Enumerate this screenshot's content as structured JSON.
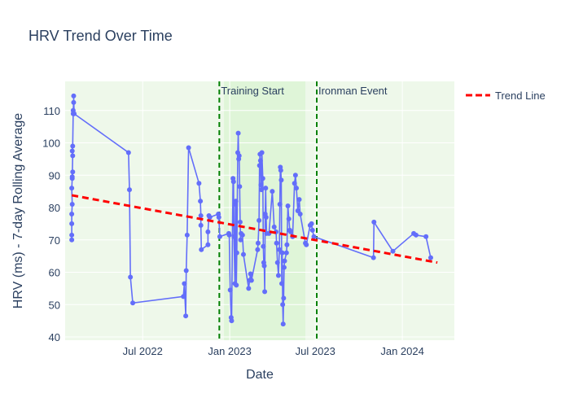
{
  "chart_data": {
    "type": "line",
    "title": "HRV Trend Over Time",
    "xlabel": "Date",
    "ylabel": "HRV (ms) - 7-day Rolling Average",
    "xlim": [
      "2022-01-18",
      "2024-04-20"
    ],
    "ylim": [
      39,
      119
    ],
    "x_ticks": [
      {
        "date": "2022-07-01",
        "label": "Jul 2022"
      },
      {
        "date": "2023-01-01",
        "label": "Jan 2023"
      },
      {
        "date": "2023-07-01",
        "label": "Jul 2023"
      },
      {
        "date": "2024-01-01",
        "label": "Jan 2024"
      }
    ],
    "y_ticks": [
      40,
      50,
      60,
      70,
      80,
      90,
      100,
      110
    ],
    "grid": true,
    "legend": {
      "position": "top-right",
      "entries": [
        {
          "name": "Trend Line",
          "color": "#ff0000",
          "style": "dashed"
        }
      ]
    },
    "colors": {
      "series": "#636efa",
      "trend": "#ff0000",
      "markers": "#008000",
      "background": "#eef8ea",
      "highlight": "#dff5d8",
      "axis_text": "#2a3f5f"
    },
    "regions": [
      {
        "start": "2022-01-18",
        "end": "2024-04-20",
        "label": ""
      },
      {
        "start": "2022-12-20",
        "end": "2023-06-10",
        "label": ""
      }
    ],
    "vlines": [
      {
        "date": "2022-12-10",
        "label": "Training Start"
      },
      {
        "date": "2023-07-04",
        "label": "Ironman Event"
      }
    ],
    "trend": {
      "start": {
        "x": "2022-02-01",
        "y": 83.8
      },
      "end": {
        "x": "2024-03-15",
        "y": 63.0
      }
    },
    "series": [
      {
        "name": "",
        "points": [
          [
            "2022-02-01",
            70
          ],
          [
            "2022-02-01",
            71.5
          ],
          [
            "2022-02-01",
            75
          ],
          [
            "2022-02-01",
            78
          ],
          [
            "2022-02-02",
            81
          ],
          [
            "2022-02-01",
            86
          ],
          [
            "2022-02-02",
            89
          ],
          [
            "2022-02-03",
            91
          ],
          [
            "2022-02-02",
            89.5
          ],
          [
            "2022-02-03",
            96
          ],
          [
            "2022-02-02",
            97.5
          ],
          [
            "2022-02-03",
            99
          ],
          [
            "2022-02-04",
            109
          ],
          [
            "2022-02-04",
            110
          ],
          [
            "2022-02-05",
            112.5
          ],
          [
            "2022-02-05",
            114.5
          ],
          [
            "2022-02-06",
            109
          ],
          [
            "2022-06-01",
            97
          ],
          [
            "2022-06-03",
            85.5
          ],
          [
            "2022-06-05",
            58.5
          ],
          [
            "2022-06-10",
            50.5
          ],
          [
            "2022-09-25",
            52.5
          ],
          [
            "2022-09-27",
            56.5
          ],
          [
            "2022-09-30",
            46.5
          ],
          [
            "2022-10-01",
            60.5
          ],
          [
            "2022-10-03",
            71.5
          ],
          [
            "2022-10-06",
            98.5
          ],
          [
            "2022-10-28",
            87.5
          ],
          [
            "2022-10-31",
            82
          ],
          [
            "2022-11-01",
            77.5
          ],
          [
            "2022-11-01",
            74.5
          ],
          [
            "2022-11-02",
            67
          ],
          [
            "2022-11-16",
            68.5
          ],
          [
            "2022-11-16",
            72.5
          ],
          [
            "2022-11-18",
            77.5
          ],
          [
            "2022-11-20",
            77
          ],
          [
            "2022-12-08",
            78
          ],
          [
            "2022-12-09",
            77
          ],
          [
            "2022-12-11",
            71
          ],
          [
            "2022-12-30",
            72
          ],
          [
            "2022-12-31",
            71.5
          ],
          [
            "2023-01-02",
            54.5
          ],
          [
            "2023-01-04",
            46
          ],
          [
            "2023-01-05",
            45
          ],
          [
            "2023-01-08",
            89
          ],
          [
            "2023-01-09",
            88
          ],
          [
            "2023-01-10",
            71
          ],
          [
            "2023-01-12",
            56.5
          ],
          [
            "2023-01-13",
            81
          ],
          [
            "2023-01-14",
            82
          ],
          [
            "2023-01-15",
            56
          ],
          [
            "2023-01-16",
            66
          ],
          [
            "2023-01-18",
            97
          ],
          [
            "2023-01-19",
            103
          ],
          [
            "2023-01-20",
            95
          ],
          [
            "2023-01-21",
            96
          ],
          [
            "2023-01-22",
            86.5
          ],
          [
            "2023-01-23",
            75.5
          ],
          [
            "2023-01-24",
            70
          ],
          [
            "2023-01-25",
            72
          ],
          [
            "2023-01-28",
            71.5
          ],
          [
            "2023-01-30",
            65.5
          ],
          [
            "2023-02-10",
            55
          ],
          [
            "2023-02-12",
            57.5
          ],
          [
            "2023-02-14",
            59.5
          ],
          [
            "2023-02-16",
            57.5
          ],
          [
            "2023-03-01",
            67
          ],
          [
            "2023-03-02",
            69
          ],
          [
            "2023-03-04",
            76
          ],
          [
            "2023-03-05",
            93
          ],
          [
            "2023-03-06",
            96.5
          ],
          [
            "2023-03-07",
            94.5
          ],
          [
            "2023-03-08",
            87
          ],
          [
            "2023-03-09",
            85.5
          ],
          [
            "2023-03-10",
            97
          ],
          [
            "2023-03-12",
            89
          ],
          [
            "2023-03-13",
            68
          ],
          [
            "2023-03-14",
            63
          ],
          [
            "2023-03-15",
            62
          ],
          [
            "2023-03-16",
            54
          ],
          [
            "2023-03-17",
            78
          ],
          [
            "2023-03-18",
            86
          ],
          [
            "2023-03-19",
            77
          ],
          [
            "2023-03-20",
            72
          ],
          [
            "2023-03-25",
            72
          ],
          [
            "2023-04-01",
            85
          ],
          [
            "2023-04-05",
            74
          ],
          [
            "2023-04-09",
            72.5
          ],
          [
            "2023-04-10",
            69
          ],
          [
            "2023-04-12",
            63
          ],
          [
            "2023-04-14",
            59
          ],
          [
            "2023-04-16",
            67
          ],
          [
            "2023-04-17",
            81
          ],
          [
            "2023-04-18",
            92.5
          ],
          [
            "2023-04-19",
            91.5
          ],
          [
            "2023-04-20",
            88.5
          ],
          [
            "2023-04-21",
            56.5
          ],
          [
            "2023-04-22",
            66
          ],
          [
            "2023-04-23",
            50
          ],
          [
            "2023-04-24",
            44
          ],
          [
            "2023-04-25",
            52
          ],
          [
            "2023-04-26",
            61.5
          ],
          [
            "2023-04-27",
            63.5
          ],
          [
            "2023-05-01",
            66
          ],
          [
            "2023-05-02",
            68.5
          ],
          [
            "2023-05-04",
            80.5
          ],
          [
            "2023-05-06",
            76.5
          ],
          [
            "2023-05-08",
            73
          ],
          [
            "2023-05-10",
            72.5
          ],
          [
            "2023-05-14",
            71
          ],
          [
            "2023-05-18",
            87.5
          ],
          [
            "2023-05-20",
            90
          ],
          [
            "2023-05-22",
            86
          ],
          [
            "2023-05-25",
            79
          ],
          [
            "2023-05-28",
            82.5
          ],
          [
            "2023-05-30",
            78
          ],
          [
            "2023-06-10",
            69
          ],
          [
            "2023-06-12",
            68.5
          ],
          [
            "2023-06-20",
            74.5
          ],
          [
            "2023-06-23",
            75
          ],
          [
            "2023-06-25",
            73
          ],
          [
            "2023-06-28",
            71
          ],
          [
            "2023-11-01",
            64.5
          ],
          [
            "2023-11-02",
            75.5
          ],
          [
            "2023-12-12",
            66.5
          ],
          [
            "2024-01-25",
            72
          ],
          [
            "2024-01-30",
            71.5
          ],
          [
            "2024-02-20",
            71
          ],
          [
            "2024-03-01",
            64.5
          ]
        ]
      }
    ]
  }
}
